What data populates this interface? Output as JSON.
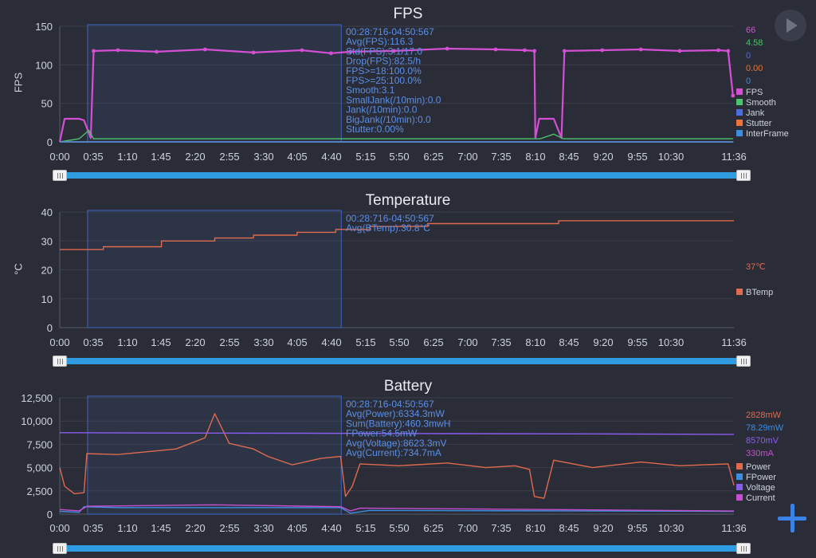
{
  "colors": {
    "bg": "#2a2d37",
    "grid": "#3a3e4a",
    "text": "#cfd3dc",
    "stats": "#5b8fe8",
    "sel": "#3b66c8"
  },
  "x_ticks": [
    "0:00",
    "0:35",
    "1:10",
    "1:45",
    "2:20",
    "2:55",
    "3:30",
    "4:05",
    "4:40",
    "5:15",
    "5:50",
    "6:25",
    "7:00",
    "7:35",
    "8:10",
    "8:45",
    "9:20",
    "9:55",
    "10:30",
    "11:36"
  ],
  "controls": {
    "play_icon": "play-icon",
    "add_icon": "plus-icon"
  },
  "panels": [
    {
      "id": "fps",
      "title": "FPS",
      "ylabel": "FPS",
      "yticks": [
        "0",
        "50",
        "100",
        "150"
      ],
      "stats": [
        "00:28:716-04:50:567",
        "Avg(FPS):116.3",
        "Std(FPS):3.1/17.0",
        "Drop(FPS):82.5/h",
        "FPS>=18:100.0%",
        "FPS>=25:100.0%",
        "Smooth:3.1",
        "SmallJank(/10min):0.0",
        "Jank(/10min):0.0",
        "BigJank(/10min):0.0",
        "Stutter:0.00%"
      ],
      "values": [
        {
          "text": "66",
          "color": "#d44fd4"
        },
        {
          "text": "4.58",
          "color": "#4cc26a"
        },
        {
          "text": "0",
          "color": "#4a6ee0"
        },
        {
          "text": "0.00",
          "color": "#e8743b"
        },
        {
          "text": "0",
          "color": "#3d8de0"
        }
      ],
      "legend": [
        {
          "text": "FPS",
          "color": "#d44fd4"
        },
        {
          "text": "Smooth",
          "color": "#4cc26a"
        },
        {
          "text": "Jank",
          "color": "#4a6ee0"
        },
        {
          "text": "Stutter",
          "color": "#e8743b"
        },
        {
          "text": "InterFrame",
          "color": "#3d8de0"
        }
      ]
    },
    {
      "id": "temp",
      "title": "Temperature",
      "ylabel": "°C",
      "yticks": [
        "0",
        "10",
        "20",
        "30",
        "40"
      ],
      "stats": [
        "00:28:716-04:50:567",
        "Avg(BTemp):30.8°C"
      ],
      "values": [
        {
          "text": "37℃",
          "color": "#e06a4e"
        }
      ],
      "legend": [
        {
          "text": "BTemp",
          "color": "#e06a4e"
        }
      ]
    },
    {
      "id": "battery",
      "title": "Battery",
      "ylabel": "",
      "yticks": [
        "0",
        "2,500",
        "5,000",
        "7,500",
        "10,000",
        "12,500"
      ],
      "stats": [
        "00:28:716-04:50:567",
        "Avg(Power):6334.3mW",
        "Sum(Battery):460.3mwH",
        "FPower:54.5mW",
        "Avg(Voltage):8623.3mV",
        "Avg(Current):734.7mA"
      ],
      "values": [
        {
          "text": "2828mW",
          "color": "#e06a4e"
        },
        {
          "text": "78.29mW",
          "color": "#3d8de0"
        },
        {
          "text": "8570mV",
          "color": "#8b5cf0"
        },
        {
          "text": "330mA",
          "color": "#c94fd0"
        }
      ],
      "legend": [
        {
          "text": "Power",
          "color": "#e06a4e"
        },
        {
          "text": "FPower",
          "color": "#3d8de0"
        },
        {
          "text": "Voltage",
          "color": "#8b5cf0"
        },
        {
          "text": "Current",
          "color": "#c94fd0"
        }
      ]
    }
  ],
  "chart_data": [
    {
      "type": "line",
      "title": "FPS",
      "ylabel": "FPS",
      "ylim": [
        0,
        150
      ],
      "x_unit": "seconds",
      "xlim": [
        0,
        696
      ],
      "selection": [
        28.7,
        290.6
      ],
      "series": [
        {
          "name": "FPS",
          "points": [
            [
              0,
              0
            ],
            [
              5,
              30
            ],
            [
              20,
              30
            ],
            [
              25,
              28
            ],
            [
              32,
              5
            ],
            [
              35,
              118
            ],
            [
              60,
              119
            ],
            [
              100,
              117
            ],
            [
              150,
              120
            ],
            [
              200,
              116
            ],
            [
              250,
              119
            ],
            [
              280,
              115
            ],
            [
              300,
              117
            ],
            [
              345,
              118
            ],
            [
              400,
              121
            ],
            [
              450,
              120
            ],
            [
              480,
              119
            ],
            [
              490,
              118
            ],
            [
              491,
              5
            ],
            [
              495,
              30
            ],
            [
              510,
              30
            ],
            [
              518,
              5
            ],
            [
              521,
              118
            ],
            [
              560,
              119
            ],
            [
              600,
              120
            ],
            [
              640,
              118
            ],
            [
              680,
              119
            ],
            [
              690,
              118
            ],
            [
              695,
              60
            ]
          ]
        },
        {
          "name": "Smooth",
          "points": [
            [
              0,
              0
            ],
            [
              20,
              4
            ],
            [
              30,
              15
            ],
            [
              35,
              4
            ],
            [
              300,
              4
            ],
            [
              496,
              4
            ],
            [
              510,
              10
            ],
            [
              520,
              4
            ],
            [
              695,
              4
            ]
          ]
        },
        {
          "name": "Jank",
          "points": [
            [
              0,
              0
            ],
            [
              695,
              0
            ]
          ]
        },
        {
          "name": "Stutter",
          "points": [
            [
              0,
              0
            ],
            [
              695,
              0
            ]
          ]
        },
        {
          "name": "InterFrame",
          "points": [
            [
              0,
              0
            ],
            [
              695,
              0
            ]
          ]
        }
      ]
    },
    {
      "type": "line",
      "title": "Temperature",
      "ylabel": "°C",
      "ylim": [
        0,
        40
      ],
      "x_unit": "seconds",
      "xlim": [
        0,
        696
      ],
      "selection": [
        28.7,
        290.6
      ],
      "series": [
        {
          "name": "BTemp",
          "points": [
            [
              0,
              27
            ],
            [
              45,
              27
            ],
            [
              45,
              28
            ],
            [
              105,
              28
            ],
            [
              105,
              30
            ],
            [
              160,
              30
            ],
            [
              160,
              31
            ],
            [
              200,
              31
            ],
            [
              200,
              32
            ],
            [
              245,
              32
            ],
            [
              245,
              33
            ],
            [
              285,
              33
            ],
            [
              285,
              34
            ],
            [
              320,
              34
            ],
            [
              320,
              35
            ],
            [
              380,
              35
            ],
            [
              380,
              36
            ],
            [
              515,
              36
            ],
            [
              515,
              37
            ],
            [
              696,
              37
            ]
          ]
        }
      ]
    },
    {
      "type": "line",
      "title": "Battery",
      "ylim": [
        0,
        12500
      ],
      "x_unit": "seconds",
      "xlim": [
        0,
        696
      ],
      "selection": [
        28.7,
        290.6
      ],
      "series": [
        {
          "name": "Power",
          "points": [
            [
              0,
              5000
            ],
            [
              5,
              3000
            ],
            [
              15,
              2200
            ],
            [
              25,
              2300
            ],
            [
              28,
              6500
            ],
            [
              60,
              6400
            ],
            [
              100,
              6800
            ],
            [
              120,
              7000
            ],
            [
              150,
              8200
            ],
            [
              160,
              10800
            ],
            [
              175,
              7600
            ],
            [
              200,
              7000
            ],
            [
              215,
              6200
            ],
            [
              240,
              5300
            ],
            [
              270,
              6000
            ],
            [
              290,
              6200
            ],
            [
              295,
              1900
            ],
            [
              302,
              3000
            ],
            [
              310,
              5400
            ],
            [
              350,
              5200
            ],
            [
              400,
              5500
            ],
            [
              440,
              5000
            ],
            [
              470,
              5200
            ],
            [
              485,
              4800
            ],
            [
              490,
              1900
            ],
            [
              500,
              1700
            ],
            [
              510,
              5800
            ],
            [
              550,
              5000
            ],
            [
              600,
              5600
            ],
            [
              640,
              5200
            ],
            [
              690,
              5400
            ],
            [
              696,
              3100
            ]
          ]
        },
        {
          "name": "FPower",
          "points": [
            [
              0,
              300
            ],
            [
              20,
              200
            ],
            [
              25,
              800
            ],
            [
              60,
              700
            ],
            [
              290,
              700
            ],
            [
              300,
              100
            ],
            [
              320,
              400
            ],
            [
              696,
              300
            ]
          ]
        },
        {
          "name": "Voltage",
          "points": [
            [
              0,
              8750
            ],
            [
              100,
              8720
            ],
            [
              250,
              8690
            ],
            [
              400,
              8650
            ],
            [
              550,
              8620
            ],
            [
              696,
              8570
            ]
          ]
        },
        {
          "name": "Current",
          "points": [
            [
              0,
              500
            ],
            [
              20,
              350
            ],
            [
              28,
              850
            ],
            [
              160,
              1000
            ],
            [
              290,
              800
            ],
            [
              300,
              350
            ],
            [
              310,
              650
            ],
            [
              696,
              330
            ]
          ]
        }
      ]
    }
  ]
}
